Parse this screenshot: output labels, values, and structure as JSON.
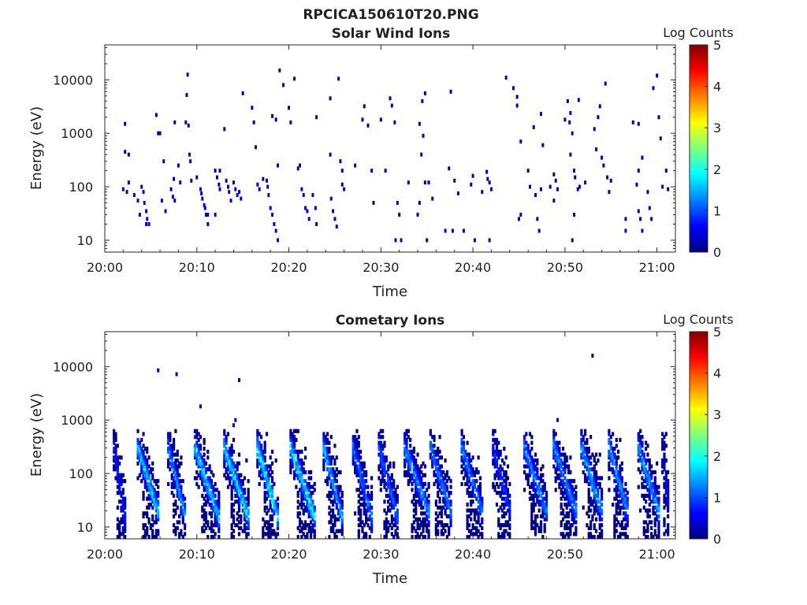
{
  "figure_title": "RPCICA150610T20.PNG",
  "colors": {
    "colormap": [
      "#00007f",
      "#0000ff",
      "#007fff",
      "#00ffff",
      "#7fff7f",
      "#ffff00",
      "#ff7f00",
      "#ff0000",
      "#7f0000"
    ],
    "axis": "#262626",
    "background": "#ffffff"
  },
  "chart_data": [
    {
      "type": "heatmap",
      "title": "Solar Wind Ions",
      "xlabel": "Time",
      "ylabel": "Energy (eV)",
      "x_ticks": [
        "20:00",
        "20:10",
        "20:20",
        "20:30",
        "20:40",
        "20:50",
        "21:00"
      ],
      "x_range_min": [
        0,
        62
      ],
      "y_scale": "log",
      "y_ticks": [
        "10",
        "100",
        "1000",
        "10000"
      ],
      "y_range": [
        6,
        45000
      ],
      "colorbar": {
        "label": "Log Counts",
        "range": [
          0,
          5
        ],
        "ticks": [
          "0",
          "1",
          "2",
          "3",
          "4",
          "5"
        ]
      },
      "points": [
        [
          2.2,
          1500,
          0.3
        ],
        [
          2.2,
          450,
          0.3
        ],
        [
          2.0,
          90,
          0.4
        ],
        [
          2.4,
          80,
          0.3
        ],
        [
          2.6,
          400,
          0.3
        ],
        [
          2.6,
          120,
          0.3
        ],
        [
          3.2,
          70,
          0.4
        ],
        [
          3.6,
          55,
          0.5
        ],
        [
          3.8,
          30,
          0.4
        ],
        [
          4.0,
          100,
          0.5
        ],
        [
          4.2,
          80,
          0.6
        ],
        [
          4.3,
          50,
          0.6
        ],
        [
          4.5,
          35,
          0.4
        ],
        [
          4.6,
          25,
          0.5
        ],
        [
          4.5,
          20,
          0.4
        ],
        [
          4.8,
          20,
          0.3
        ],
        [
          5.6,
          2200,
          0.3
        ],
        [
          5.8,
          1000,
          0.3
        ],
        [
          6.0,
          1000,
          0.3
        ],
        [
          6.4,
          300,
          0.3
        ],
        [
          6.2,
          55,
          0.5
        ],
        [
          6.6,
          35,
          0.4
        ],
        [
          7.2,
          90,
          0.4
        ],
        [
          7.4,
          65,
          0.4
        ],
        [
          7.6,
          1600,
          0.3
        ],
        [
          7.5,
          140,
          0.3
        ],
        [
          7.6,
          55,
          0.5
        ],
        [
          8.0,
          250,
          0.3
        ],
        [
          8.2,
          120,
          0.3
        ],
        [
          8.8,
          1600,
          0.3
        ],
        [
          8.9,
          5200,
          0.3
        ],
        [
          9.0,
          12500,
          0.3
        ],
        [
          9.1,
          1400,
          0.3
        ],
        [
          9.2,
          400,
          0.3
        ],
        [
          9.3,
          300,
          0.3
        ],
        [
          9.4,
          130,
          0.4
        ],
        [
          10.0,
          150,
          0.3
        ],
        [
          10.4,
          90,
          0.5
        ],
        [
          10.5,
          75,
          0.5
        ],
        [
          10.6,
          60,
          0.5
        ],
        [
          10.8,
          45,
          0.5
        ],
        [
          10.9,
          40,
          0.5
        ],
        [
          11.0,
          30,
          0.4
        ],
        [
          11.2,
          30,
          0.4
        ],
        [
          11.2,
          20,
          0.5
        ],
        [
          12.0,
          200,
          0.3
        ],
        [
          12.2,
          150,
          0.4
        ],
        [
          12.4,
          110,
          0.4
        ],
        [
          12.5,
          90,
          0.5
        ],
        [
          12.0,
          30,
          0.4
        ],
        [
          12.5,
          200,
          0.3
        ],
        [
          13.0,
          1200,
          0.3
        ],
        [
          13.2,
          130,
          0.4
        ],
        [
          13.4,
          100,
          0.4
        ],
        [
          13.5,
          80,
          0.4
        ],
        [
          13.7,
          55,
          0.5
        ],
        [
          14.0,
          120,
          0.3
        ],
        [
          14.2,
          90,
          0.4
        ],
        [
          14.4,
          70,
          0.5
        ],
        [
          14.6,
          80,
          0.5
        ],
        [
          14.8,
          60,
          0.4
        ],
        [
          15.0,
          5600,
          0.3
        ],
        [
          16.0,
          3000,
          0.3
        ],
        [
          16.2,
          1600,
          0.3
        ],
        [
          16.4,
          550,
          0.3
        ],
        [
          16.6,
          110,
          0.4
        ],
        [
          16.8,
          90,
          0.4
        ],
        [
          17.2,
          140,
          0.3
        ],
        [
          17.6,
          130,
          0.4
        ],
        [
          17.7,
          100,
          0.4
        ],
        [
          17.8,
          70,
          0.5
        ],
        [
          18.0,
          40,
          0.5
        ],
        [
          18.2,
          30,
          0.4
        ],
        [
          18.4,
          20,
          0.5
        ],
        [
          18.6,
          15,
          0.6
        ],
        [
          18.8,
          10,
          0.5
        ],
        [
          18.2,
          2100,
          0.3
        ],
        [
          18.6,
          1800,
          0.3
        ],
        [
          18.8,
          250,
          0.3
        ],
        [
          19.0,
          15000,
          0.3
        ],
        [
          19.4,
          8000,
          0.3
        ],
        [
          20.0,
          3000,
          0.3
        ],
        [
          20.2,
          1600,
          0.3
        ],
        [
          20.6,
          10500,
          0.3
        ],
        [
          21.0,
          220,
          0.3
        ],
        [
          21.2,
          250,
          0.3
        ],
        [
          21.4,
          90,
          0.5
        ],
        [
          21.6,
          70,
          0.5
        ],
        [
          21.8,
          40,
          0.5
        ],
        [
          22.0,
          35,
          0.5
        ],
        [
          22.2,
          25,
          0.4
        ],
        [
          22.6,
          70,
          0.4
        ],
        [
          22.9,
          40,
          0.4
        ],
        [
          23.0,
          20,
          0.4
        ],
        [
          23.0,
          2000,
          0.3
        ],
        [
          24.5,
          4500,
          0.3
        ],
        [
          24.5,
          400,
          0.3
        ],
        [
          24.6,
          60,
          0.5
        ],
        [
          24.8,
          35,
          0.5
        ],
        [
          25.0,
          25,
          0.4
        ],
        [
          25.2,
          18,
          0.4
        ],
        [
          25.4,
          10500,
          0.3
        ],
        [
          25.6,
          300,
          0.3
        ],
        [
          25.8,
          200,
          0.3
        ],
        [
          25.8,
          110,
          0.3
        ],
        [
          26.0,
          90,
          0.4
        ],
        [
          27.2,
          250,
          0.3
        ],
        [
          28.0,
          1800,
          0.3
        ],
        [
          28.2,
          3200,
          0.3
        ],
        [
          28.6,
          1400,
          0.3
        ],
        [
          29.0,
          200,
          0.3
        ],
        [
          29.2,
          50,
          0.3
        ],
        [
          30.0,
          1800,
          0.3
        ],
        [
          30.5,
          200,
          0.3
        ],
        [
          31.0,
          4500,
          0.3
        ],
        [
          31.2,
          3300,
          0.3
        ],
        [
          31.5,
          1600,
          0.3
        ],
        [
          31.8,
          50,
          0.3
        ],
        [
          32.0,
          30,
          0.3
        ],
        [
          31.6,
          10,
          0.4
        ],
        [
          32.2,
          10,
          0.4
        ],
        [
          33.0,
          120,
          0.3
        ],
        [
          34.2,
          1500,
          0.3
        ],
        [
          34.4,
          400,
          0.3
        ],
        [
          34.6,
          900,
          0.3
        ],
        [
          34.8,
          5600,
          0.3
        ],
        [
          34.5,
          4000,
          0.3
        ],
        [
          34.0,
          30,
          0.3
        ],
        [
          34.2,
          50,
          0.3
        ],
        [
          34.8,
          120,
          0.3
        ],
        [
          35.2,
          120,
          0.3
        ],
        [
          35.6,
          60,
          0.3
        ],
        [
          35.0,
          10,
          0.4
        ],
        [
          37.0,
          15,
          0.4
        ],
        [
          37.4,
          220,
          0.3
        ],
        [
          37.6,
          6000,
          0.3
        ],
        [
          37.8,
          15,
          0.4
        ],
        [
          38.0,
          130,
          0.3
        ],
        [
          38.4,
          75,
          0.3
        ],
        [
          39.0,
          15,
          0.4
        ],
        [
          39.8,
          110,
          0.3
        ],
        [
          40.0,
          160,
          0.3
        ],
        [
          40.2,
          10,
          0.4
        ],
        [
          41.0,
          80,
          0.3
        ],
        [
          41.5,
          190,
          0.3
        ],
        [
          41.6,
          140,
          0.3
        ],
        [
          41.8,
          120,
          0.3
        ],
        [
          42.0,
          90,
          0.3
        ],
        [
          41.8,
          10,
          0.4
        ],
        [
          43.6,
          11000,
          0.3
        ],
        [
          44.4,
          7000,
          0.3
        ],
        [
          44.8,
          4800,
          0.3
        ],
        [
          44.8,
          3300,
          0.3
        ],
        [
          45.2,
          700,
          0.3
        ],
        [
          45.2,
          30,
          0.3
        ],
        [
          45.0,
          25,
          0.3
        ],
        [
          46.0,
          200,
          0.3
        ],
        [
          46.2,
          100,
          0.3
        ],
        [
          46.6,
          1300,
          0.3
        ],
        [
          46.8,
          70,
          0.3
        ],
        [
          47.0,
          25,
          0.3
        ],
        [
          47.2,
          15,
          0.4
        ],
        [
          47.4,
          2300,
          0.3
        ],
        [
          47.6,
          600,
          0.3
        ],
        [
          47.4,
          90,
          0.3
        ],
        [
          48.4,
          100,
          0.3
        ],
        [
          48.8,
          170,
          0.3
        ],
        [
          48.8,
          55,
          0.3
        ],
        [
          49.0,
          130,
          0.3
        ],
        [
          49.2,
          90,
          0.3
        ],
        [
          50.0,
          1800,
          0.3
        ],
        [
          50.3,
          4000,
          0.3
        ],
        [
          50.5,
          1600,
          0.3
        ],
        [
          50.6,
          2400,
          0.3
        ],
        [
          50.8,
          1000,
          0.3
        ],
        [
          50.6,
          400,
          0.3
        ],
        [
          51.0,
          200,
          0.3
        ],
        [
          51.1,
          150,
          0.3
        ],
        [
          51.4,
          90,
          0.3
        ],
        [
          50.8,
          10,
          0.3
        ],
        [
          51.0,
          30,
          0.3
        ],
        [
          51.5,
          4200,
          0.3
        ],
        [
          51.6,
          100,
          0.3
        ],
        [
          52.2,
          120,
          0.3
        ],
        [
          53.2,
          1200,
          0.3
        ],
        [
          53.4,
          500,
          0.3
        ],
        [
          53.8,
          3200,
          0.3
        ],
        [
          53.6,
          2000,
          0.3
        ],
        [
          54.0,
          350,
          0.3
        ],
        [
          54.2,
          250,
          0.3
        ],
        [
          54.4,
          8500,
          0.3
        ],
        [
          54.6,
          150,
          0.3
        ],
        [
          54.8,
          80,
          0.3
        ],
        [
          55.0,
          130,
          0.3
        ],
        [
          56.6,
          25,
          0.3
        ],
        [
          56.6,
          15,
          0.4
        ],
        [
          57.4,
          1600,
          0.3
        ],
        [
          57.8,
          110,
          0.3
        ],
        [
          58.0,
          200,
          0.3
        ],
        [
          58.0,
          35,
          0.3
        ],
        [
          58.2,
          25,
          0.3
        ],
        [
          58.4,
          15,
          0.4
        ],
        [
          58.0,
          1500,
          0.3
        ],
        [
          58.4,
          350,
          0.3
        ],
        [
          59.0,
          80,
          0.3
        ],
        [
          59.2,
          40,
          0.3
        ],
        [
          59.4,
          25,
          0.3
        ],
        [
          60.0,
          12000,
          0.3
        ],
        [
          60.2,
          2000,
          0.3
        ],
        [
          60.4,
          800,
          0.3
        ],
        [
          60.6,
          100,
          0.3
        ],
        [
          61.0,
          200,
          0.3
        ],
        [
          61.2,
          90,
          0.3
        ],
        [
          59.6,
          7000,
          0.3
        ]
      ]
    },
    {
      "type": "heatmap",
      "title": "Cometary Ions",
      "xlabel": "Time",
      "ylabel": "Energy (eV)",
      "x_ticks": [
        "20:00",
        "20:10",
        "20:20",
        "20:30",
        "20:40",
        "20:50",
        "21:00"
      ],
      "x_range_min": [
        0,
        62
      ],
      "y_scale": "log",
      "y_ticks": [
        "10",
        "100",
        "1000",
        "10000"
      ],
      "y_range": [
        6,
        45000
      ],
      "colorbar": {
        "label": "Log Counts",
        "range": [
          0,
          5
        ],
        "ticks": [
          "0",
          "1",
          "2",
          "3",
          "4",
          "5"
        ]
      },
      "sparse_points": [
        [
          5.8,
          8500,
          0.3
        ],
        [
          7.8,
          7200,
          0.3
        ],
        [
          10.4,
          1800,
          0.3
        ],
        [
          14.6,
          5600,
          0.3
        ],
        [
          14.2,
          1000,
          0.3
        ],
        [
          14.0,
          800,
          0.3
        ],
        [
          53.0,
          16000,
          0.3
        ],
        [
          49.2,
          1000,
          0.3
        ]
      ],
      "bursts": [
        {
          "start_min": 1.0,
          "end_min": 2.2,
          "peak_level": 0.9
        },
        {
          "start_min": 3.6,
          "end_min": 6.0,
          "peak_level": 1.9
        },
        {
          "start_min": 6.9,
          "end_min": 8.8,
          "peak_level": 1.6
        },
        {
          "start_min": 9.8,
          "end_min": 12.4,
          "peak_level": 1.9
        },
        {
          "start_min": 13.0,
          "end_min": 15.6,
          "peak_level": 2.0
        },
        {
          "start_min": 16.6,
          "end_min": 18.8,
          "peak_level": 2.2
        },
        {
          "start_min": 20.2,
          "end_min": 22.8,
          "peak_level": 2.1
        },
        {
          "start_min": 23.8,
          "end_min": 25.8,
          "peak_level": 1.8
        },
        {
          "start_min": 27.0,
          "end_min": 29.0,
          "peak_level": 1.4
        },
        {
          "start_min": 29.8,
          "end_min": 31.8,
          "peak_level": 1.3
        },
        {
          "start_min": 32.6,
          "end_min": 35.4,
          "peak_level": 1.6
        },
        {
          "start_min": 35.4,
          "end_min": 37.8,
          "peak_level": 1.4
        },
        {
          "start_min": 38.8,
          "end_min": 41.2,
          "peak_level": 1.5
        },
        {
          "start_min": 42.2,
          "end_min": 44.2,
          "peak_level": 1.0
        },
        {
          "start_min": 45.6,
          "end_min": 48.2,
          "peak_level": 1.5
        },
        {
          "start_min": 48.8,
          "end_min": 51.4,
          "peak_level": 1.6
        },
        {
          "start_min": 51.8,
          "end_min": 54.2,
          "peak_level": 1.7
        },
        {
          "start_min": 54.8,
          "end_min": 57.0,
          "peak_level": 1.7
        },
        {
          "start_min": 58.0,
          "end_min": 60.4,
          "peak_level": 1.7
        },
        {
          "start_min": 60.6,
          "end_min": 61.4,
          "peak_level": 0.7
        }
      ]
    }
  ]
}
